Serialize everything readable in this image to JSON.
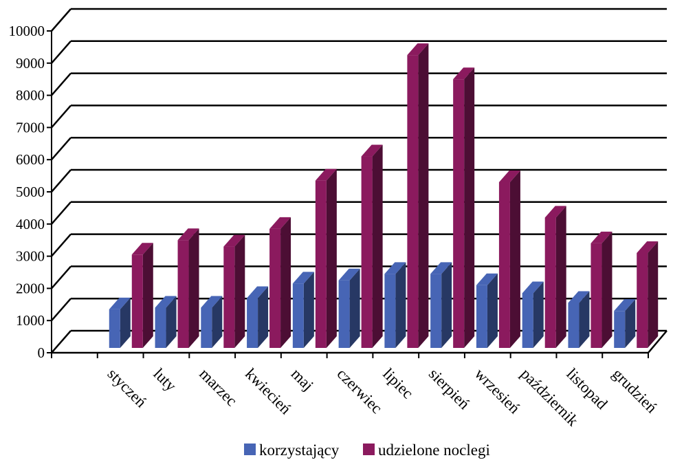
{
  "chart_data": {
    "type": "bar",
    "style": "3d-clustered",
    "categories": [
      "styczeń",
      "luty",
      "marzec",
      "kwiecień",
      "maj",
      "czerwiec",
      "lipiec",
      "sierpień",
      "wrzesień",
      "październik",
      "listopad",
      "grudzień"
    ],
    "series": [
      {
        "name": "korzystający",
        "color": "#4765B5",
        "values": [
          1200,
          1250,
          1250,
          1550,
          2000,
          2100,
          2300,
          2300,
          1950,
          1700,
          1400,
          1150
        ]
      },
      {
        "name": "udzielone noclegi",
        "color": "#8B1A5E",
        "values": [
          2900,
          3350,
          3150,
          3700,
          5200,
          5950,
          9100,
          8350,
          5150,
          4050,
          3250,
          2950
        ]
      }
    ],
    "yticks": [
      "0",
      "1000",
      "2000",
      "3000",
      "4000",
      "5000",
      "6000",
      "7000",
      "8000",
      "9000",
      "10000"
    ],
    "ylim": [
      0,
      10000
    ],
    "grid": true,
    "legend": "bottom"
  }
}
